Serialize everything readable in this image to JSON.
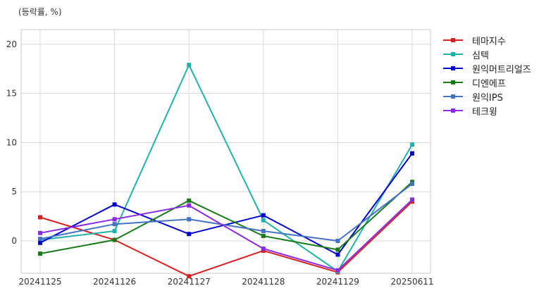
{
  "chart_data": {
    "type": "line",
    "unit_label": "(등락률, %)",
    "categories": [
      "20241125",
      "20241126",
      "20241127",
      "20241128",
      "20241129",
      "20250611"
    ],
    "ylim": [
      -3.3,
      21.5
    ],
    "yticks": [
      0,
      5,
      10,
      15,
      20
    ],
    "grid": true,
    "legend_position": "right",
    "series": [
      {
        "name": "테마지수",
        "color": "#d62020",
        "values": [
          2.4,
          0.1,
          -3.6,
          -1.0,
          -3.2,
          4.0
        ]
      },
      {
        "name": "심텍",
        "color": "#20b2aa",
        "values": [
          0.1,
          1.0,
          17.9,
          2.1,
          -3.1,
          9.8
        ]
      },
      {
        "name": "원익머트리얼즈",
        "color": "#0000cd",
        "values": [
          -0.2,
          3.7,
          0.7,
          2.6,
          -1.4,
          8.9
        ]
      },
      {
        "name": "디엔에프",
        "color": "#1a7a1a",
        "values": [
          -1.3,
          0.1,
          4.1,
          0.5,
          -0.9,
          6.0
        ]
      },
      {
        "name": "원익IPS",
        "color": "#4472c4",
        "values": [
          0.2,
          1.7,
          2.2,
          1.0,
          0.0,
          5.8
        ]
      },
      {
        "name": "테크윙",
        "color": "#8a2be2",
        "values": [
          0.8,
          2.2,
          3.6,
          -0.8,
          -3.0,
          4.2
        ]
      }
    ]
  }
}
